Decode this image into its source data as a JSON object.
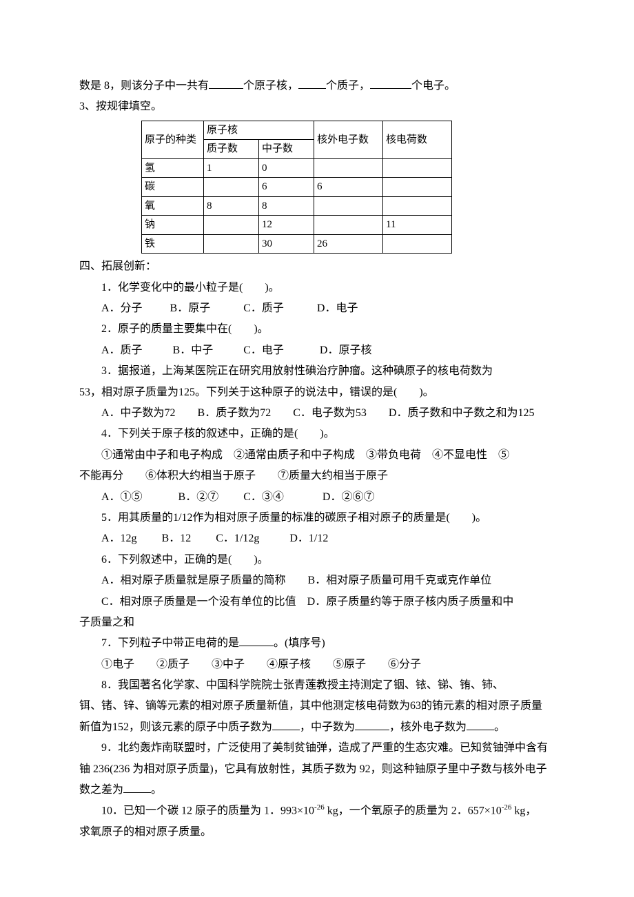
{
  "intro": {
    "line1_pre": "数是 8，则该分子中一共有",
    "line1_mid1": "个原子核，",
    "line1_mid2": "个质子，",
    "line1_end": "个电子。",
    "line2": "3、按规律填空。"
  },
  "table": {
    "h_type": "原子的种类",
    "h_nucleus": "原子核",
    "h_proton": "质子数",
    "h_neutron": "中子数",
    "h_electron": "核外电子数",
    "h_charge": "核电荷数",
    "rows": [
      {
        "type": "氢",
        "p": "1",
        "n": "0",
        "e": "",
        "c": ""
      },
      {
        "type": "碳",
        "p": "",
        "n": "6",
        "e": "6",
        "c": ""
      },
      {
        "type": "氧",
        "p": "8",
        "n": "8",
        "e": "",
        "c": ""
      },
      {
        "type": "钠",
        "p": "",
        "n": "12",
        "e": "",
        "c": "11"
      },
      {
        "type": "铁",
        "p": "",
        "n": "30",
        "e": "26",
        "c": ""
      }
    ]
  },
  "section4": {
    "title": "四、拓展创新：",
    "q1": {
      "stem": "1．化学变化中的最小粒子是(　　)。",
      "opts": "A．分子          B．原子            C．质子            D．电子"
    },
    "q2": {
      "stem": "2．原子的质量主要集中在(　　)。",
      "opts": "A．质子           B．中子           C．电子             D．原子核"
    },
    "q3": {
      "l1": "3．据报道，上海某医院正在研究用放射性碘治疗肿瘤。这种碘原子的核电荷数为",
      "l2": "53，相对原子质量为125。下列关于这种原子的说法中，错误的是(　　)。",
      "opts": "A．中子数为72　　B．质子数为72　　C．电子数为53　　D．质子数和中子数之和为125"
    },
    "q4": {
      "stem": "4．下列关于原子核的叙述中，正确的是(　　)。",
      "l1": "①通常由中子和电子构成　②通常由质子和中子构成　③带负电荷　④不显电性　⑤",
      "l2": "不能再分　　⑥体积大约相当于原子　　⑦质量大约相当于原子",
      "opts": "A．①⑤             B．②⑦         C．③④              D．②⑥⑦"
    },
    "q5": {
      "stem": "5．用其质量的1/12作为相对原子质量的标准的碳原子相对原子的质量是(　　)。",
      "opts": "A．12g         B．12         C．1/12g           D．1/12"
    },
    "q6": {
      "stem": "6．下列叙述中，正确的是(　　)。",
      "l1": "A．相对原子质量就是原子质量的简称　　B．相对原子质量可用千克或克作单位",
      "l2": "C．相对原子质量是一个没有单位的比值　D．原子质量约等于原子核内质子质量和中",
      "l3": "子质量之和"
    },
    "q7": {
      "stem_pre": "7．下列粒子中带正电荷的是",
      "stem_post": "。(填序号)",
      "opts": "①电子　　②质子　　③中子　　④原子核　　⑤原子　　⑥分子"
    },
    "q8": {
      "l1": "8．我国著名化学家、中国科学院院士张青莲教授主持测定了铟、铱、锑、铕、铈、",
      "l2": "铒、锗、锌、镝等元素的相对原子质量新值，其中他测定核电荷数为63的铕元素的相对原子质量",
      "l3_pre": "新值为152，则该元素的原子中质子数为",
      "l3_mid1": "，中子数为",
      "l3_mid2": "，核外电子数为",
      "l3_end": "。"
    },
    "q9": {
      "l1": "9．北约轰炸南联盟时，广泛使用了美制贫铀弹，造成了严重的生态灾难。已知贫铀弹中含有",
      "l2": "铀 236(236 为相对原子质量)，它具有放射性，其质子数为 92，则这种铀原子里中子数与核外电子",
      "l3_pre": "数之差为",
      "l3_end": "。"
    },
    "q10": {
      "pre": "10．已知一个碳 12 原子的质量为 1．993×10",
      "exp1": "-26",
      "mid": " kg，一个氧原子的质量为 2．657×10",
      "exp2": "-26",
      "post": " kg，",
      "l2": "求氧原子的相对原子质量。"
    }
  }
}
